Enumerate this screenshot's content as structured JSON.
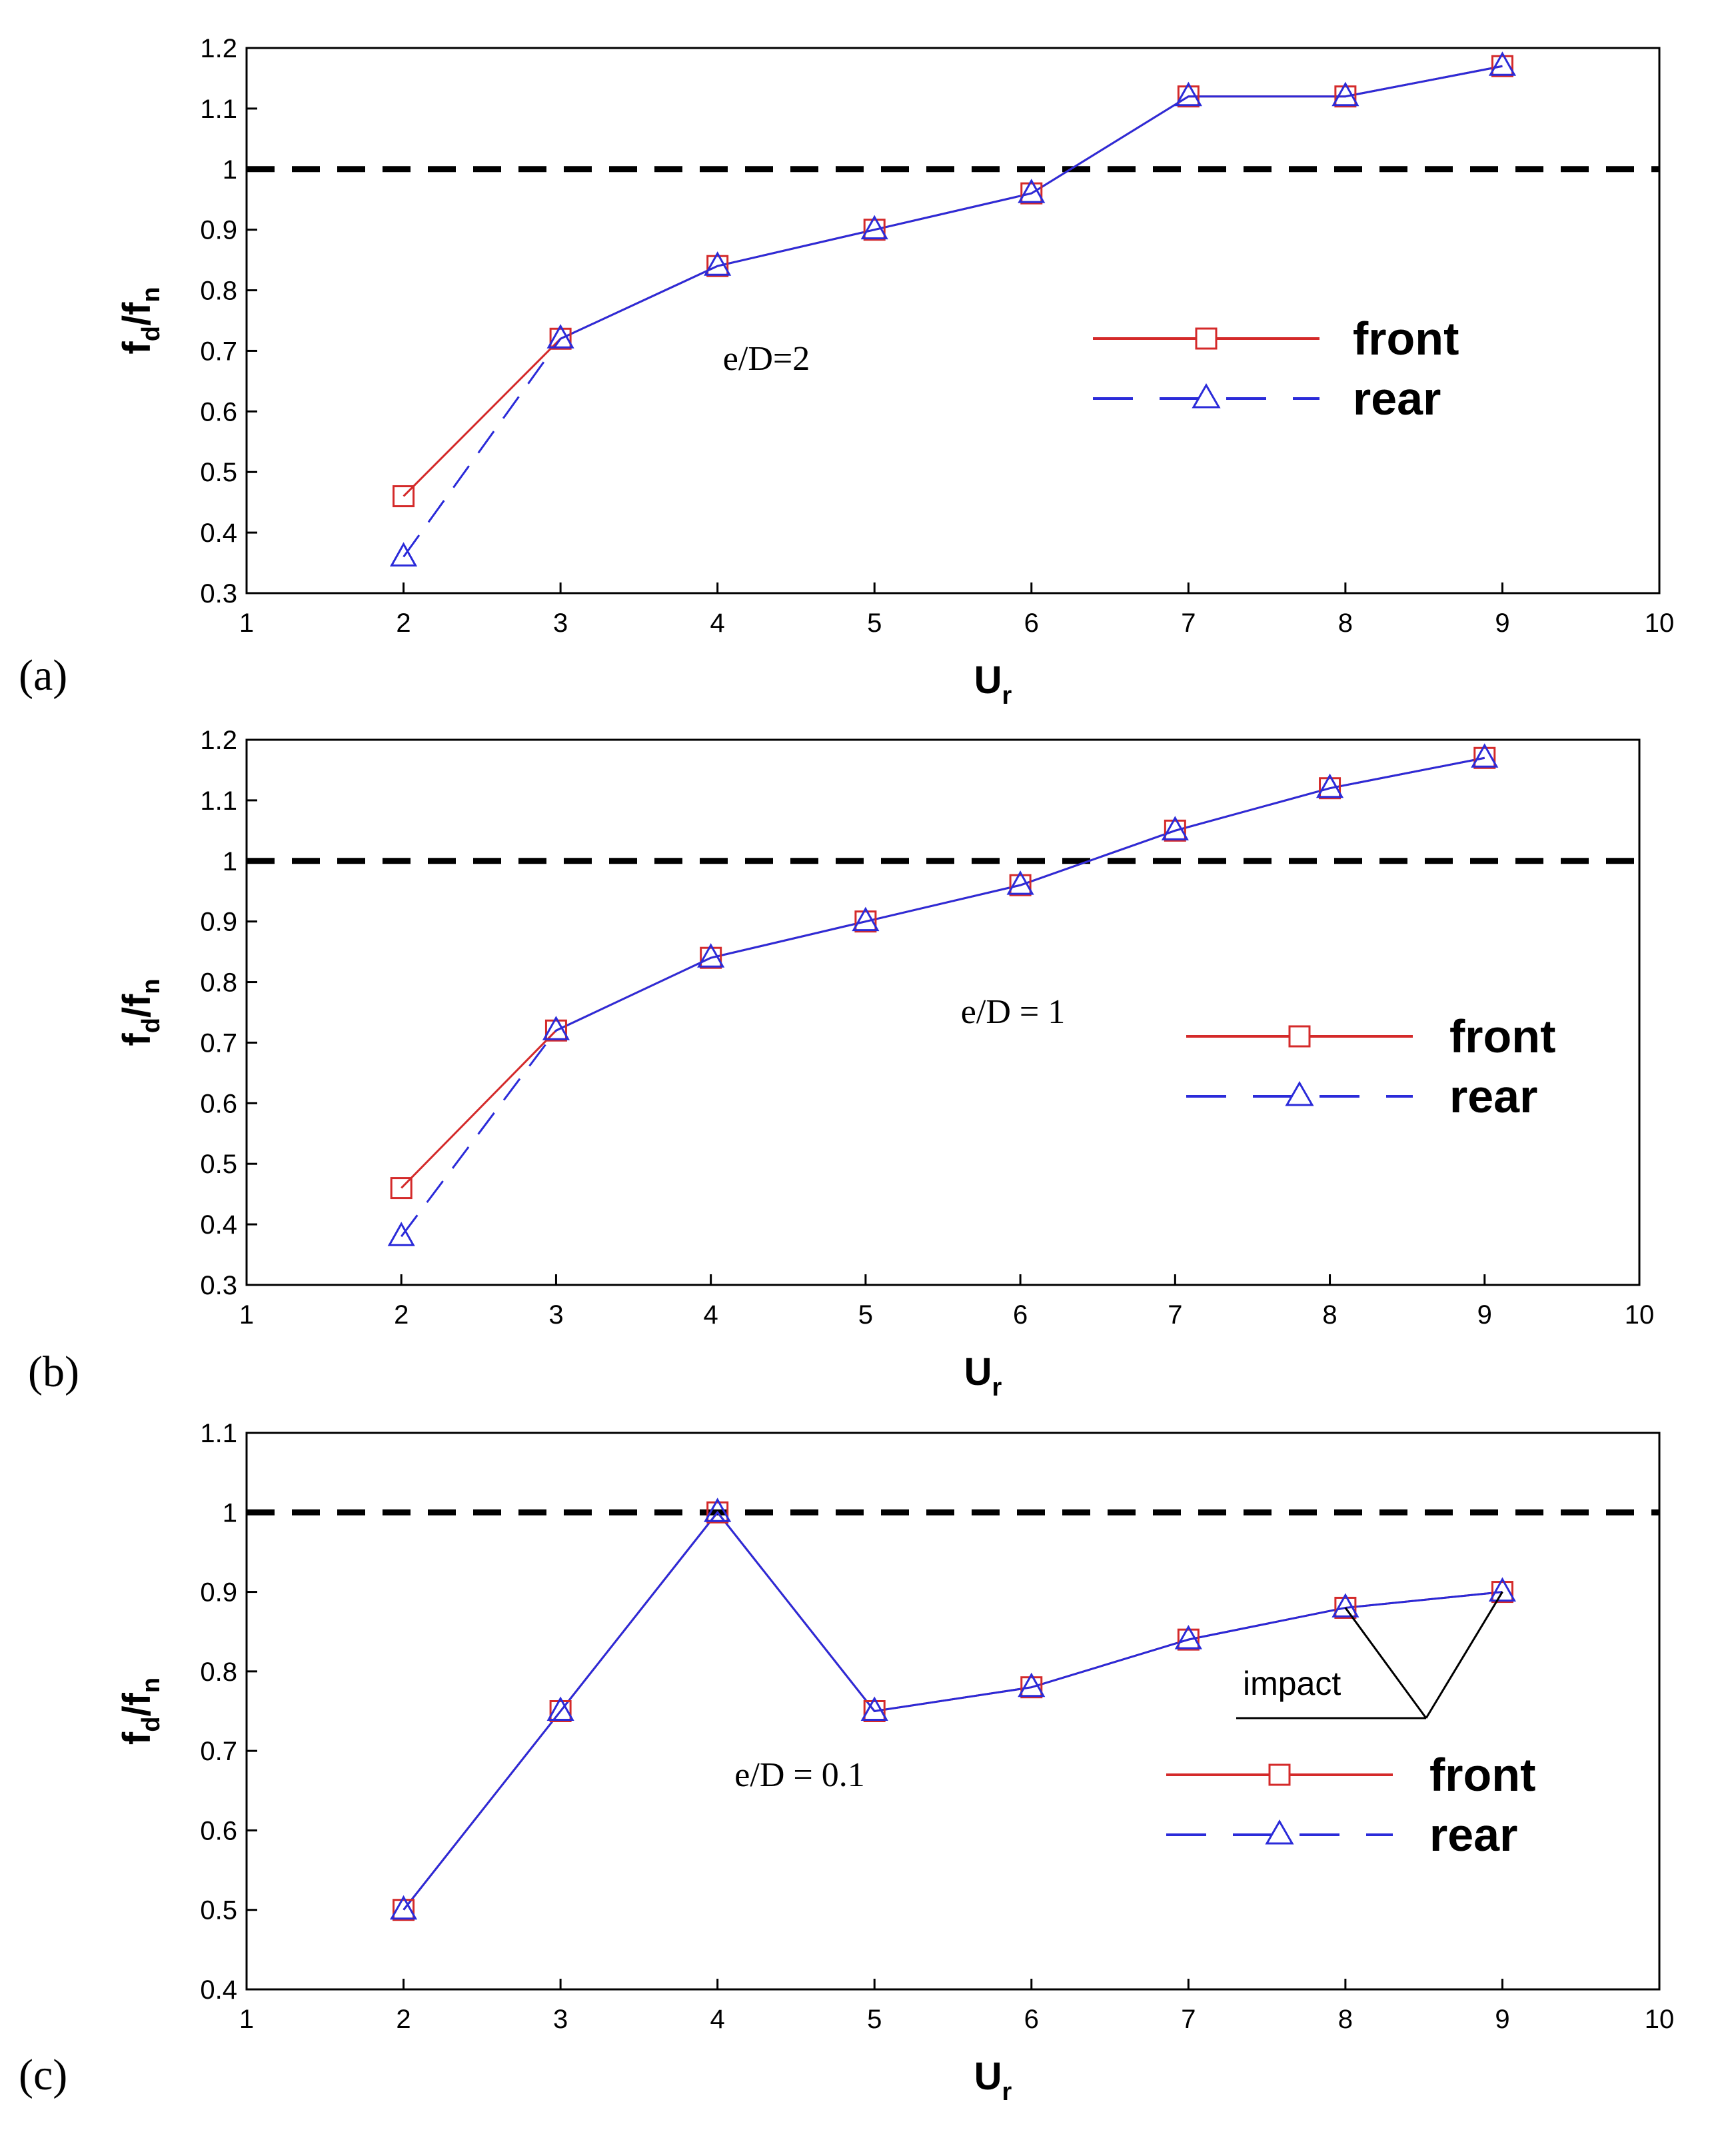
{
  "chart_data": [
    {
      "type": "line",
      "panel_label": "(a)",
      "xlabel": "U",
      "xlabel_sub": "r",
      "ylabel": {
        "f1": "f",
        "s1": "d",
        "mid": "/f",
        "s2": "n"
      },
      "xlim": [
        1,
        10
      ],
      "ylim": [
        0.3,
        1.2
      ],
      "xticks": [
        1,
        2,
        3,
        4,
        5,
        6,
        7,
        8,
        9,
        10
      ],
      "yticks": [
        0.3,
        0.4,
        0.5,
        0.6,
        0.7,
        0.8,
        0.9,
        1,
        1.1,
        1.2
      ],
      "reference_line": 1,
      "annotation": "e/D=2",
      "series": [
        {
          "name": "front",
          "color": "#d42a2a",
          "marker": "square",
          "x": [
            2,
            3,
            4,
            5,
            6,
            7,
            8,
            9
          ],
          "y": [
            0.46,
            0.72,
            0.84,
            0.9,
            0.96,
            1.12,
            1.12,
            1.17
          ]
        },
        {
          "name": "rear",
          "color": "#2b2bd9",
          "marker": "triangle",
          "x": [
            2,
            3,
            4,
            5,
            6,
            7,
            8,
            9
          ],
          "y": [
            0.36,
            0.72,
            0.84,
            0.9,
            0.96,
            1.12,
            1.12,
            1.17
          ]
        }
      ]
    },
    {
      "type": "line",
      "panel_label": "(b)",
      "xlabel": "U",
      "xlabel_sub": "r",
      "ylabel": {
        "f1": "f",
        "s1": "d",
        "mid": "/f",
        "s2": "n"
      },
      "xlim": [
        1,
        10
      ],
      "ylim": [
        0.3,
        1.2
      ],
      "xticks": [
        1,
        2,
        3,
        4,
        5,
        6,
        7,
        8,
        9,
        10
      ],
      "yticks": [
        0.3,
        0.4,
        0.5,
        0.6,
        0.7,
        0.8,
        0.9,
        1,
        1.1,
        1.2
      ],
      "reference_line": 1,
      "annotation": "e/D = 1",
      "series": [
        {
          "name": "front",
          "color": "#d42a2a",
          "marker": "square",
          "x": [
            2,
            3,
            4,
            5,
            6,
            7,
            8,
            9
          ],
          "y": [
            0.46,
            0.72,
            0.84,
            0.9,
            0.96,
            1.05,
            1.12,
            1.17
          ]
        },
        {
          "name": "rear",
          "color": "#2b2bd9",
          "marker": "triangle",
          "x": [
            2,
            3,
            4,
            5,
            6,
            7,
            8,
            9
          ],
          "y": [
            0.38,
            0.72,
            0.84,
            0.9,
            0.96,
            1.05,
            1.12,
            1.17
          ]
        }
      ]
    },
    {
      "type": "line",
      "panel_label": "(c)",
      "xlabel": "U",
      "xlabel_sub": "r",
      "ylabel": {
        "f1": "f",
        "s1": "d",
        "mid": "/f",
        "s2": "n"
      },
      "xlim": [
        1,
        10
      ],
      "ylim": [
        0.4,
        1.1
      ],
      "xticks": [
        1,
        2,
        3,
        4,
        5,
        6,
        7,
        8,
        9,
        10
      ],
      "yticks": [
        0.4,
        0.5,
        0.6,
        0.7,
        0.8,
        0.9,
        1,
        1.1
      ],
      "reference_line": 1,
      "annotation": "e/D = 0.1",
      "callout": {
        "text": "impact",
        "targets": [
          [
            8,
            0.88
          ],
          [
            9,
            0.9
          ]
        ]
      },
      "series": [
        {
          "name": "front",
          "color": "#d42a2a",
          "marker": "square",
          "x": [
            2,
            3,
            4,
            5,
            6,
            7,
            8,
            9
          ],
          "y": [
            0.5,
            0.75,
            1.0,
            0.75,
            0.78,
            0.84,
            0.88,
            0.9
          ]
        },
        {
          "name": "rear",
          "color": "#2b2bd9",
          "marker": "triangle",
          "x": [
            2,
            3,
            4,
            5,
            6,
            7,
            8,
            9
          ],
          "y": [
            0.5,
            0.75,
            1.0,
            0.75,
            0.78,
            0.84,
            0.88,
            0.9
          ]
        }
      ]
    }
  ]
}
